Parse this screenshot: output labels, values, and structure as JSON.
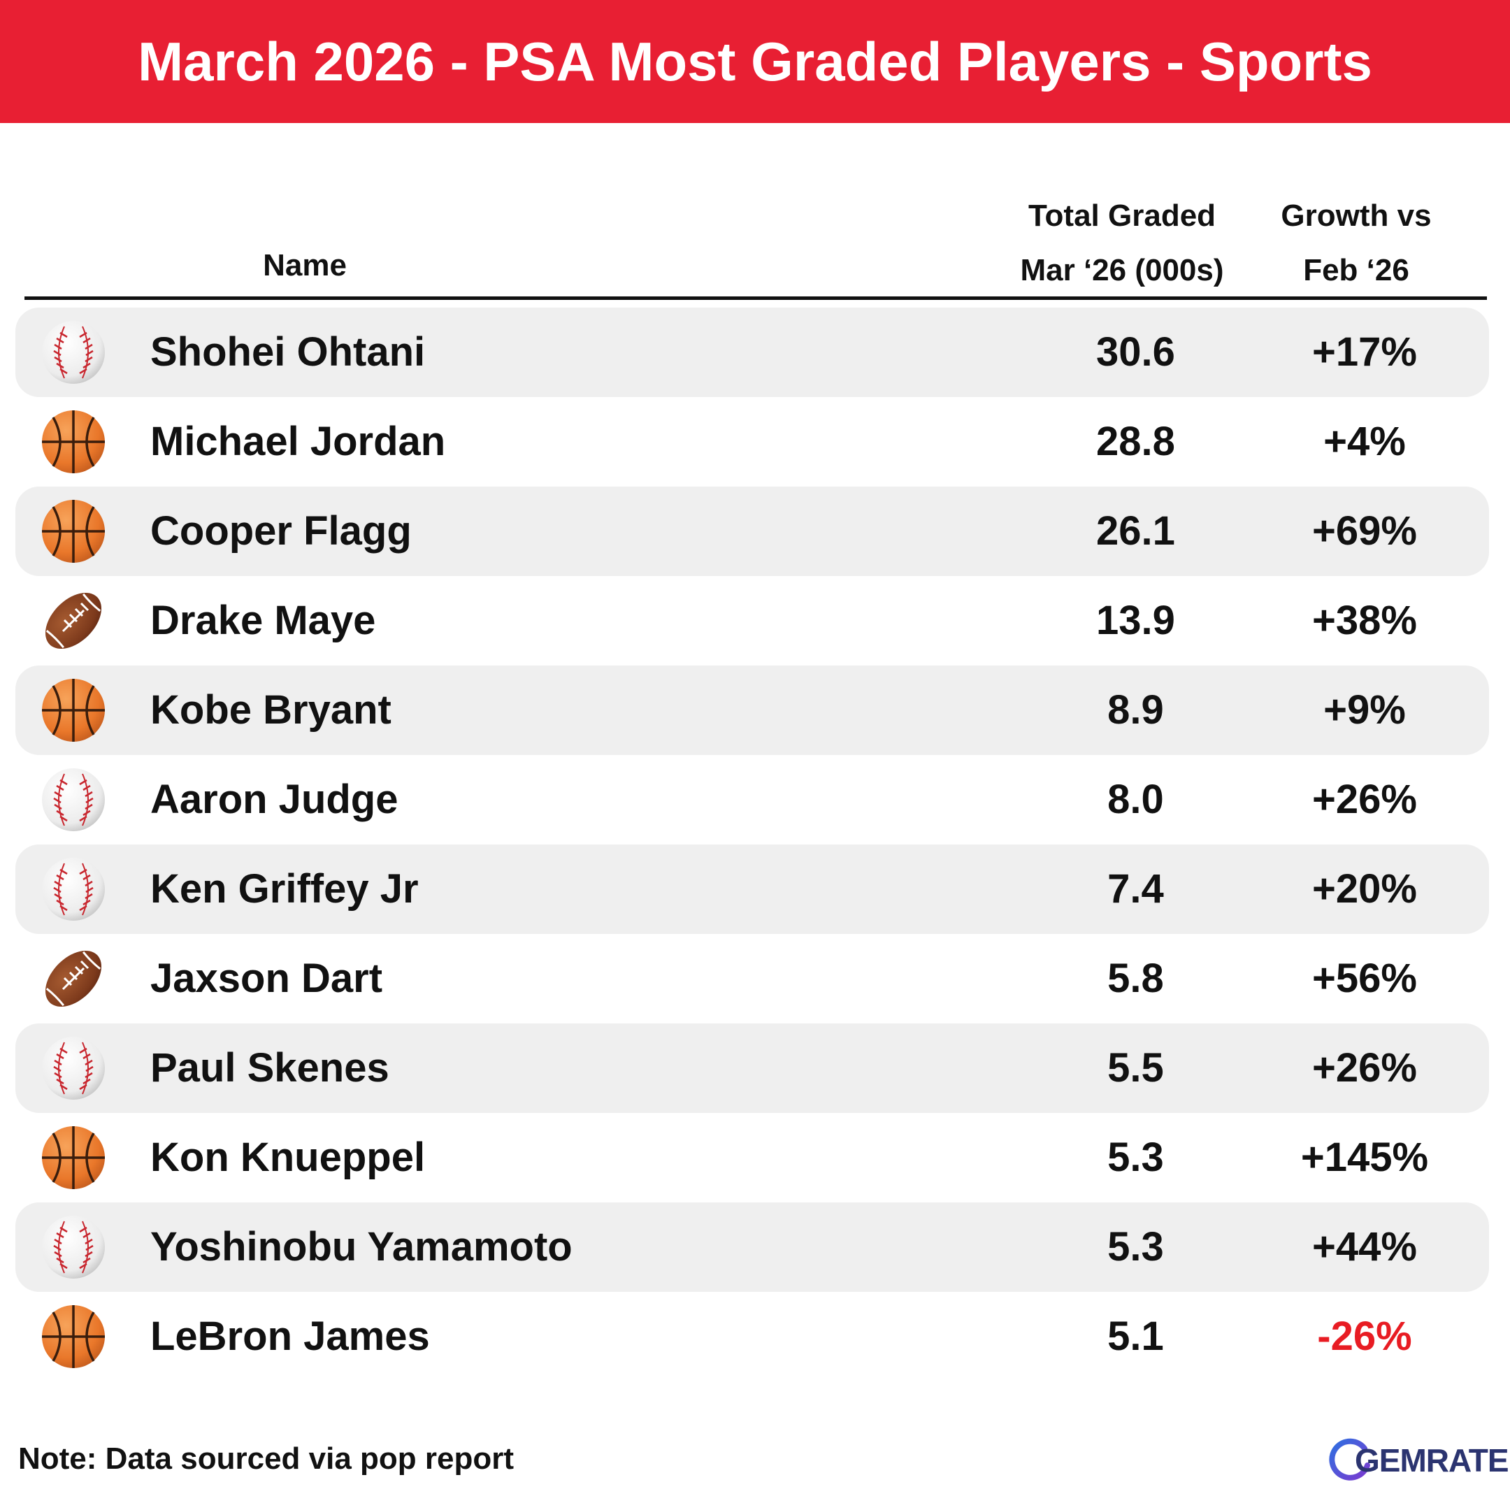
{
  "banner": {
    "title": "March 2026 - PSA Most Graded Players - Sports",
    "color": "#e81f33"
  },
  "columns": {
    "name": "Name",
    "total_line1": "Total Graded",
    "total_line2": "Mar ‘26 (000s)",
    "growth_line1": "Growth vs",
    "growth_line2": "Feb ‘26"
  },
  "chart_data": {
    "type": "table",
    "title": "March 2026 - PSA Most Graded Players - Sports",
    "columns": [
      "Name",
      "Total Graded Mar ‘26 (000s)",
      "Growth vs Feb ‘26"
    ],
    "rows": [
      {
        "sport_icon": "baseball-icon",
        "name": "Shohei Ohtani",
        "total_graded": "30.6",
        "growth": "+17%"
      },
      {
        "sport_icon": "basketball-icon",
        "name": "Michael Jordan",
        "total_graded": "28.8",
        "growth": "+4%"
      },
      {
        "sport_icon": "basketball-icon",
        "name": "Cooper Flagg",
        "total_graded": "26.1",
        "growth": "+69%"
      },
      {
        "sport_icon": "football-icon",
        "name": "Drake Maye",
        "total_graded": "13.9",
        "growth": "+38%"
      },
      {
        "sport_icon": "basketball-icon",
        "name": "Kobe Bryant",
        "total_graded": "8.9",
        "growth": "+9%"
      },
      {
        "sport_icon": "baseball-icon",
        "name": "Aaron Judge",
        "total_graded": "8.0",
        "growth": "+26%"
      },
      {
        "sport_icon": "baseball-icon",
        "name": "Ken Griffey Jr",
        "total_graded": "7.4",
        "growth": "+20%"
      },
      {
        "sport_icon": "football-icon",
        "name": "Jaxson Dart",
        "total_graded": "5.8",
        "growth": "+56%"
      },
      {
        "sport_icon": "baseball-icon",
        "name": "Paul Skenes",
        "total_graded": "5.5",
        "growth": "+26%"
      },
      {
        "sport_icon": "basketball-icon",
        "name": "Kon Knueppel",
        "total_graded": "5.3",
        "growth": "+145%"
      },
      {
        "sport_icon": "baseball-icon",
        "name": "Yoshinobu Yamamoto",
        "total_graded": "5.3",
        "growth": "+44%"
      },
      {
        "sport_icon": "basketball-icon",
        "name": "LeBron James",
        "total_graded": "5.1",
        "growth": "-26%"
      }
    ]
  },
  "colors": {
    "row_shade": "#efefef",
    "negative": "#e81c23",
    "text": "#111111"
  },
  "footer": {
    "note": "Note: Data sourced via pop report",
    "logo_text": "GEMRATE"
  }
}
